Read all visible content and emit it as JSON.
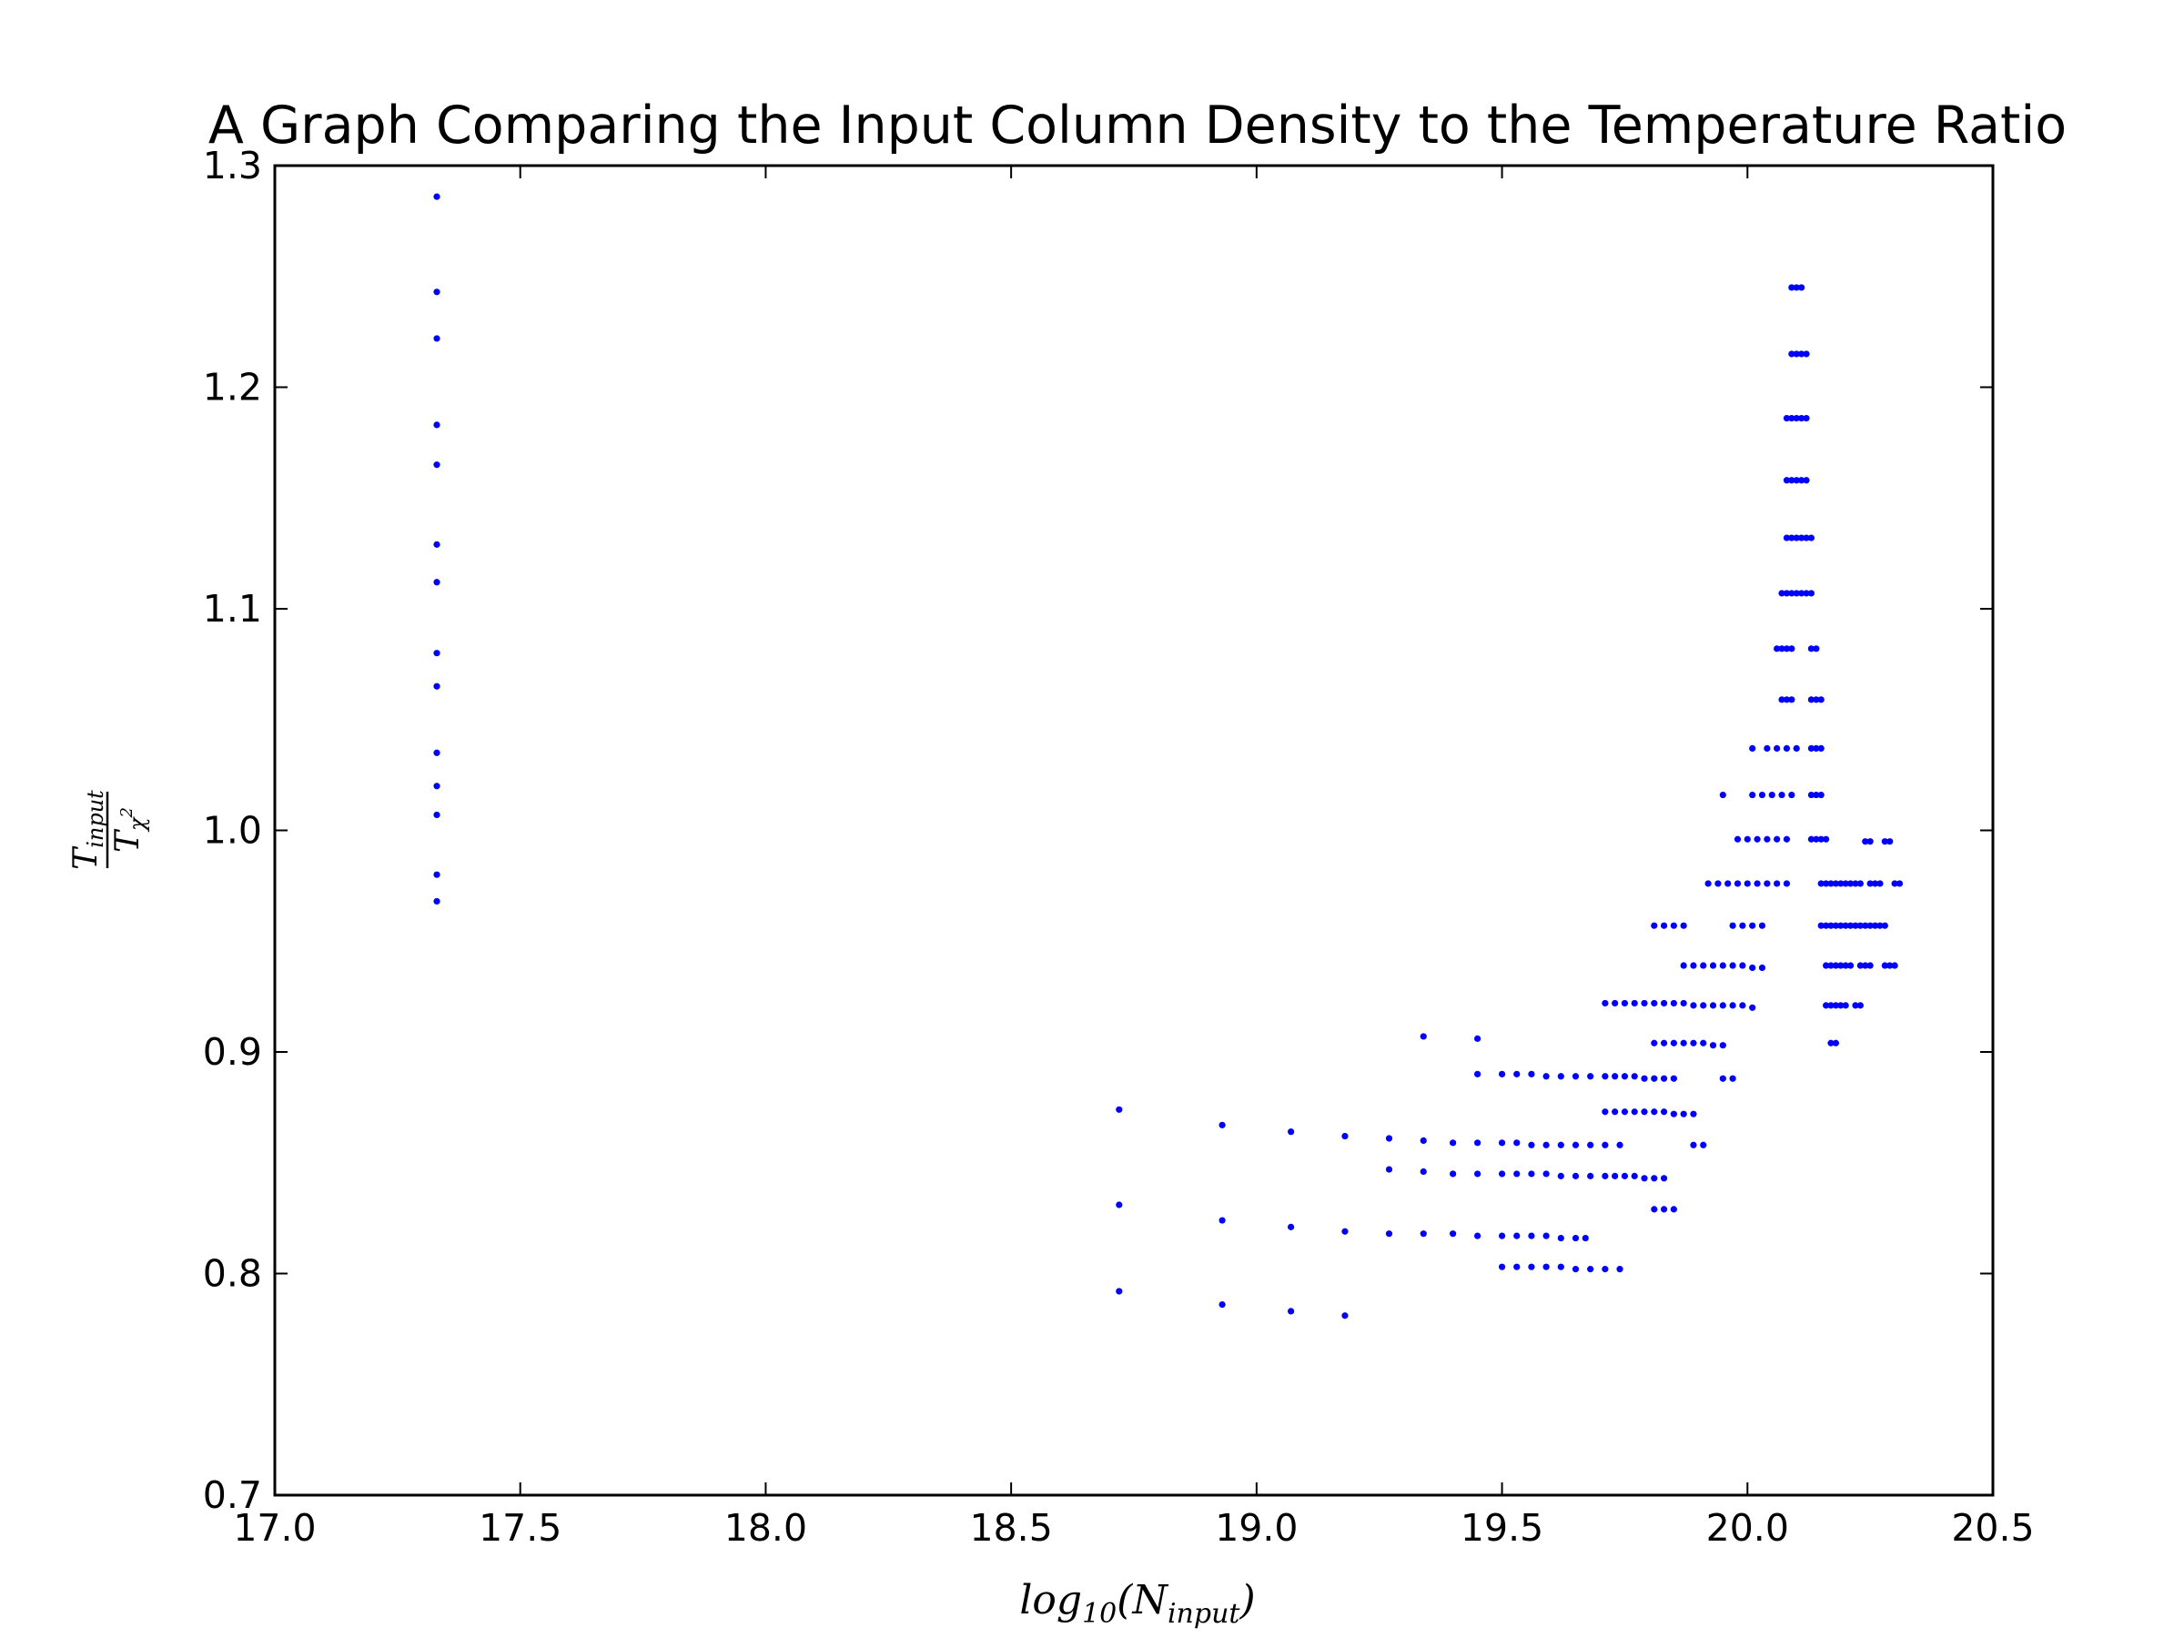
{
  "chart_data": {
    "type": "scatter",
    "title": "A Graph Comparing the Input Column Density to the Temperature Ratio",
    "xlabel": {
      "base": "log",
      "sub": "10",
      "paren_open": "(N",
      "sub2": "input",
      "paren_close": ")"
    },
    "ylabel": {
      "num_main": "T",
      "num_sub": "input",
      "den_main": "T",
      "den_sub": "χ",
      "den_sup": "2"
    },
    "xlim": [
      17.0,
      20.5
    ],
    "ylim": [
      0.7,
      1.3
    ],
    "xticks": [
      17.0,
      17.5,
      18.0,
      18.5,
      19.0,
      19.5,
      20.0,
      20.5
    ],
    "xtick_labels": [
      "17.0",
      "17.5",
      "18.0",
      "18.5",
      "19.0",
      "19.5",
      "20.0",
      "20.5"
    ],
    "yticks": [
      0.7,
      0.8,
      0.9,
      1.0,
      1.1,
      1.2,
      1.3
    ],
    "ytick_labels": [
      "0.7",
      "0.8",
      "0.9",
      "1.0",
      "1.1",
      "1.2",
      "1.3"
    ],
    "grid": false,
    "marker_color": "#0000ff",
    "series": [
      {
        "points": [
          [
            17.33,
            1.286
          ],
          [
            17.33,
            1.243
          ],
          [
            17.33,
            1.222
          ],
          [
            17.33,
            1.183
          ],
          [
            17.33,
            1.165
          ],
          [
            17.33,
            1.129
          ],
          [
            17.33,
            1.112
          ],
          [
            17.33,
            1.08
          ],
          [
            17.33,
            1.065
          ],
          [
            17.33,
            1.035
          ],
          [
            17.33,
            1.02
          ],
          [
            17.33,
            1.007
          ],
          [
            17.33,
            0.98
          ],
          [
            17.33,
            0.968
          ],
          [
            18.72,
            0.874
          ],
          [
            18.72,
            0.831
          ],
          [
            18.72,
            0.792
          ],
          [
            18.93,
            0.867
          ],
          [
            18.93,
            0.824
          ],
          [
            18.93,
            0.786
          ],
          [
            19.07,
            0.864
          ],
          [
            19.07,
            0.821
          ],
          [
            19.07,
            0.783
          ],
          [
            19.18,
            0.862
          ],
          [
            19.18,
            0.819
          ],
          [
            19.18,
            0.781
          ],
          [
            19.27,
            0.861
          ],
          [
            19.27,
            0.847
          ],
          [
            19.27,
            0.818
          ],
          [
            19.34,
            0.907
          ],
          [
            19.34,
            0.86
          ],
          [
            19.34,
            0.846
          ],
          [
            19.34,
            0.818
          ],
          [
            19.4,
            0.859
          ],
          [
            19.4,
            0.845
          ],
          [
            19.4,
            0.818
          ],
          [
            19.45,
            0.906
          ],
          [
            19.45,
            0.89
          ],
          [
            19.45,
            0.859
          ],
          [
            19.45,
            0.845
          ],
          [
            19.45,
            0.817
          ],
          [
            19.5,
            0.89
          ],
          [
            19.53,
            0.89
          ],
          [
            19.56,
            0.89
          ],
          [
            19.59,
            0.889
          ],
          [
            19.62,
            0.889
          ],
          [
            19.65,
            0.889
          ],
          [
            19.68,
            0.889
          ],
          [
            19.71,
            0.889
          ],
          [
            19.73,
            0.889
          ],
          [
            19.75,
            0.889
          ],
          [
            19.77,
            0.889
          ],
          [
            19.79,
            0.888
          ],
          [
            19.81,
            0.888
          ],
          [
            19.83,
            0.888
          ],
          [
            19.85,
            0.888
          ],
          [
            19.5,
            0.859
          ],
          [
            19.53,
            0.859
          ],
          [
            19.56,
            0.858
          ],
          [
            19.59,
            0.858
          ],
          [
            19.62,
            0.858
          ],
          [
            19.65,
            0.858
          ],
          [
            19.68,
            0.858
          ],
          [
            19.71,
            0.858
          ],
          [
            19.74,
            0.858
          ],
          [
            19.5,
            0.845
          ],
          [
            19.53,
            0.845
          ],
          [
            19.56,
            0.845
          ],
          [
            19.59,
            0.845
          ],
          [
            19.62,
            0.844
          ],
          [
            19.65,
            0.844
          ],
          [
            19.68,
            0.844
          ],
          [
            19.71,
            0.844
          ],
          [
            19.73,
            0.844
          ],
          [
            19.75,
            0.844
          ],
          [
            19.77,
            0.844
          ],
          [
            19.79,
            0.843
          ],
          [
            19.81,
            0.843
          ],
          [
            19.83,
            0.843
          ],
          [
            19.5,
            0.817
          ],
          [
            19.53,
            0.817
          ],
          [
            19.56,
            0.817
          ],
          [
            19.59,
            0.817
          ],
          [
            19.62,
            0.816
          ],
          [
            19.65,
            0.816
          ],
          [
            19.67,
            0.816
          ],
          [
            19.5,
            0.803
          ],
          [
            19.53,
            0.803
          ],
          [
            19.56,
            0.803
          ],
          [
            19.59,
            0.803
          ],
          [
            19.62,
            0.803
          ],
          [
            19.65,
            0.802
          ],
          [
            19.68,
            0.802
          ],
          [
            19.71,
            0.802
          ],
          [
            19.74,
            0.802
          ],
          [
            19.71,
            0.922
          ],
          [
            19.73,
            0.922
          ],
          [
            19.75,
            0.922
          ],
          [
            19.77,
            0.922
          ],
          [
            19.79,
            0.922
          ],
          [
            19.81,
            0.922
          ],
          [
            19.83,
            0.922
          ],
          [
            19.85,
            0.922
          ],
          [
            19.87,
            0.922
          ],
          [
            19.89,
            0.921
          ],
          [
            19.91,
            0.921
          ],
          [
            19.93,
            0.921
          ],
          [
            19.95,
            0.921
          ],
          [
            19.97,
            0.921
          ],
          [
            19.99,
            0.921
          ],
          [
            20.01,
            0.92
          ],
          [
            19.71,
            0.873
          ],
          [
            19.73,
            0.873
          ],
          [
            19.75,
            0.873
          ],
          [
            19.77,
            0.873
          ],
          [
            19.79,
            0.873
          ],
          [
            19.81,
            0.873
          ],
          [
            19.83,
            0.873
          ],
          [
            19.85,
            0.872
          ],
          [
            19.87,
            0.872
          ],
          [
            19.89,
            0.872
          ],
          [
            19.81,
            0.829
          ],
          [
            19.83,
            0.829
          ],
          [
            19.85,
            0.829
          ],
          [
            19.81,
            0.957
          ],
          [
            19.83,
            0.957
          ],
          [
            19.85,
            0.957
          ],
          [
            19.87,
            0.957
          ],
          [
            19.81,
            0.904
          ],
          [
            19.83,
            0.904
          ],
          [
            19.85,
            0.904
          ],
          [
            19.87,
            0.904
          ],
          [
            19.89,
            0.904
          ],
          [
            19.91,
            0.904
          ],
          [
            19.93,
            0.903
          ],
          [
            19.95,
            0.903
          ],
          [
            19.87,
            0.939
          ],
          [
            19.89,
            0.939
          ],
          [
            19.91,
            0.939
          ],
          [
            19.93,
            0.939
          ],
          [
            19.95,
            0.939
          ],
          [
            19.97,
            0.939
          ],
          [
            19.99,
            0.939
          ],
          [
            20.01,
            0.938
          ],
          [
            20.03,
            0.938
          ],
          [
            19.89,
            0.858
          ],
          [
            19.91,
            0.858
          ],
          [
            19.92,
            0.976
          ],
          [
            19.94,
            0.976
          ],
          [
            19.96,
            0.976
          ],
          [
            19.98,
            0.976
          ],
          [
            20.0,
            0.976
          ],
          [
            20.02,
            0.976
          ],
          [
            20.04,
            0.976
          ],
          [
            20.06,
            0.976
          ],
          [
            20.08,
            0.976
          ],
          [
            19.95,
            0.888
          ],
          [
            19.97,
            0.888
          ],
          [
            19.95,
            1.016
          ],
          [
            19.97,
            0.957
          ],
          [
            19.99,
            0.957
          ],
          [
            20.01,
            0.957
          ],
          [
            20.03,
            0.957
          ],
          [
            19.98,
            0.996
          ],
          [
            20.0,
            0.996
          ],
          [
            20.02,
            0.996
          ],
          [
            20.04,
            0.996
          ],
          [
            20.06,
            0.996
          ],
          [
            20.08,
            0.996
          ],
          [
            20.01,
            1.037
          ],
          [
            20.04,
            1.037
          ],
          [
            20.06,
            1.037
          ],
          [
            20.08,
            1.037
          ],
          [
            20.1,
            1.037
          ],
          [
            20.01,
            1.016
          ],
          [
            20.03,
            1.016
          ],
          [
            20.05,
            1.016
          ],
          [
            20.07,
            1.016
          ],
          [
            20.09,
            1.016
          ],
          [
            20.09,
            1.245
          ],
          [
            20.1,
            1.245
          ],
          [
            20.11,
            1.245
          ],
          [
            20.09,
            1.215
          ],
          [
            20.1,
            1.215
          ],
          [
            20.11,
            1.215
          ],
          [
            20.12,
            1.215
          ],
          [
            20.08,
            1.186
          ],
          [
            20.09,
            1.186
          ],
          [
            20.1,
            1.186
          ],
          [
            20.11,
            1.186
          ],
          [
            20.12,
            1.186
          ],
          [
            20.08,
            1.158
          ],
          [
            20.09,
            1.158
          ],
          [
            20.1,
            1.158
          ],
          [
            20.11,
            1.158
          ],
          [
            20.12,
            1.158
          ],
          [
            20.08,
            1.132
          ],
          [
            20.09,
            1.132
          ],
          [
            20.1,
            1.132
          ],
          [
            20.11,
            1.132
          ],
          [
            20.12,
            1.132
          ],
          [
            20.13,
            1.132
          ],
          [
            20.07,
            1.107
          ],
          [
            20.08,
            1.107
          ],
          [
            20.09,
            1.107
          ],
          [
            20.1,
            1.107
          ],
          [
            20.11,
            1.107
          ],
          [
            20.12,
            1.107
          ],
          [
            20.13,
            1.107
          ],
          [
            20.06,
            1.082
          ],
          [
            20.07,
            1.082
          ],
          [
            20.08,
            1.082
          ],
          [
            20.09,
            1.082
          ],
          [
            20.13,
            1.082
          ],
          [
            20.14,
            1.082
          ],
          [
            20.07,
            1.059
          ],
          [
            20.08,
            1.059
          ],
          [
            20.09,
            1.059
          ],
          [
            20.13,
            1.059
          ],
          [
            20.14,
            1.059
          ],
          [
            20.15,
            1.059
          ],
          [
            20.13,
            1.037
          ],
          [
            20.14,
            1.037
          ],
          [
            20.15,
            1.037
          ],
          [
            20.13,
            1.016
          ],
          [
            20.14,
            1.016
          ],
          [
            20.15,
            1.016
          ],
          [
            20.13,
            0.996
          ],
          [
            20.14,
            0.996
          ],
          [
            20.15,
            0.996
          ],
          [
            20.16,
            0.996
          ],
          [
            20.24,
            0.995
          ],
          [
            20.25,
            0.995
          ],
          [
            20.28,
            0.995
          ],
          [
            20.29,
            0.995
          ],
          [
            20.15,
            0.976
          ],
          [
            20.16,
            0.976
          ],
          [
            20.17,
            0.976
          ],
          [
            20.18,
            0.976
          ],
          [
            20.19,
            0.976
          ],
          [
            20.2,
            0.976
          ],
          [
            20.21,
            0.976
          ],
          [
            20.22,
            0.976
          ],
          [
            20.23,
            0.976
          ],
          [
            20.25,
            0.976
          ],
          [
            20.26,
            0.976
          ],
          [
            20.27,
            0.976
          ],
          [
            20.3,
            0.976
          ],
          [
            20.31,
            0.976
          ],
          [
            20.15,
            0.957
          ],
          [
            20.16,
            0.957
          ],
          [
            20.17,
            0.957
          ],
          [
            20.18,
            0.957
          ],
          [
            20.19,
            0.957
          ],
          [
            20.2,
            0.957
          ],
          [
            20.21,
            0.957
          ],
          [
            20.22,
            0.957
          ],
          [
            20.23,
            0.957
          ],
          [
            20.24,
            0.957
          ],
          [
            20.25,
            0.957
          ],
          [
            20.26,
            0.957
          ],
          [
            20.27,
            0.957
          ],
          [
            20.28,
            0.957
          ],
          [
            20.16,
            0.939
          ],
          [
            20.17,
            0.939
          ],
          [
            20.18,
            0.939
          ],
          [
            20.19,
            0.939
          ],
          [
            20.2,
            0.939
          ],
          [
            20.21,
            0.939
          ],
          [
            20.23,
            0.939
          ],
          [
            20.24,
            0.939
          ],
          [
            20.25,
            0.939
          ],
          [
            20.28,
            0.939
          ],
          [
            20.29,
            0.939
          ],
          [
            20.3,
            0.939
          ],
          [
            20.16,
            0.921
          ],
          [
            20.17,
            0.921
          ],
          [
            20.18,
            0.921
          ],
          [
            20.19,
            0.921
          ],
          [
            20.2,
            0.921
          ],
          [
            20.22,
            0.921
          ],
          [
            20.23,
            0.921
          ],
          [
            20.17,
            0.904
          ],
          [
            20.18,
            0.904
          ]
        ]
      }
    ]
  }
}
